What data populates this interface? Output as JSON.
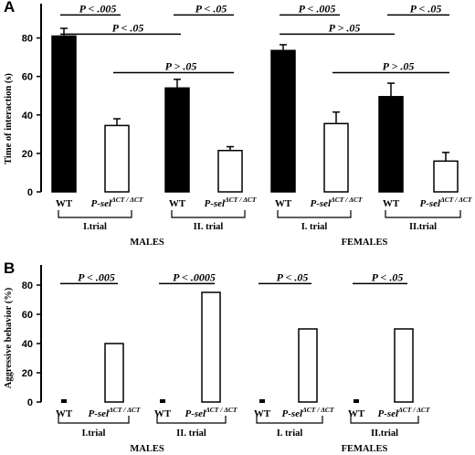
{
  "chart_data": [
    {
      "panel_label": "A",
      "type": "bar",
      "ylabel": "Time of interaction (s)",
      "ylim": [
        0,
        95
      ],
      "yticks": [
        0,
        20,
        40,
        60,
        80
      ],
      "categories": [
        "WT",
        "P-sel",
        "WT",
        "P-sel",
        "WT",
        "P-sel",
        "WT",
        "P-sel"
      ],
      "genotype_superscript": "ΔCT / ΔCT",
      "values": [
        81,
        34.5,
        54,
        21.5,
        73.5,
        35.5,
        49.5,
        16
      ],
      "errors": [
        4,
        3.5,
        4.5,
        2,
        3,
        6,
        7,
        4.5
      ],
      "fills": [
        "#000000",
        "#ffffff",
        "#000000",
        "#ffffff",
        "#000000",
        "#ffffff",
        "#000000",
        "#ffffff"
      ],
      "trials": [
        "I.trial",
        "II. trial",
        "I. trial",
        "II.trial"
      ],
      "groups": [
        "MALES",
        "FEMALES"
      ],
      "comparisons": [
        {
          "text": "P < .005",
          "from": 0,
          "to": 1,
          "y": 92
        },
        {
          "text": "P < .05",
          "from": 2,
          "to": 3,
          "y": 92
        },
        {
          "text": "P < .005",
          "from": 4,
          "to": 5,
          "y": 92
        },
        {
          "text": "P < .05",
          "from": 6,
          "to": 7,
          "y": 92
        },
        {
          "text": "P < .05",
          "from": 0,
          "to": 2,
          "y": 82
        },
        {
          "text": "P > .05",
          "from": 1,
          "to": 3,
          "y": 62
        },
        {
          "text": "P > .05",
          "from": 4,
          "to": 6,
          "y": 82
        },
        {
          "text": "P > .05",
          "from": 5,
          "to": 7,
          "y": 62
        }
      ]
    },
    {
      "panel_label": "B",
      "type": "bar",
      "ylabel": "Aggressive behavior (%)",
      "ylim": [
        0,
        90
      ],
      "yticks": [
        0,
        20,
        40,
        60,
        80
      ],
      "categories": [
        "WT",
        "P-sel",
        "WT",
        "P-sel",
        "WT",
        "P-sel",
        "WT",
        "P-sel"
      ],
      "genotype_superscript": "ΔCT / ΔCT",
      "values": [
        0,
        40,
        0,
        75,
        0,
        50,
        0,
        50
      ],
      "fills": [
        "#000000",
        "#ffffff",
        "#000000",
        "#ffffff",
        "#000000",
        "#ffffff",
        "#000000",
        "#ffffff"
      ],
      "trials": [
        "I.trial",
        "II. trial",
        "I. trial",
        "II.trial"
      ],
      "groups": [
        "MALES",
        "FEMALES"
      ],
      "comparisons": [
        {
          "text": "P < .005",
          "from": 0,
          "to": 1,
          "y": 81
        },
        {
          "text": "P < .0005",
          "from": 2,
          "to": 3,
          "y": 81
        },
        {
          "text": "P < .05",
          "from": 4,
          "to": 5,
          "y": 81
        },
        {
          "text": "P < .05",
          "from": 6,
          "to": 7,
          "y": 81
        }
      ]
    }
  ]
}
